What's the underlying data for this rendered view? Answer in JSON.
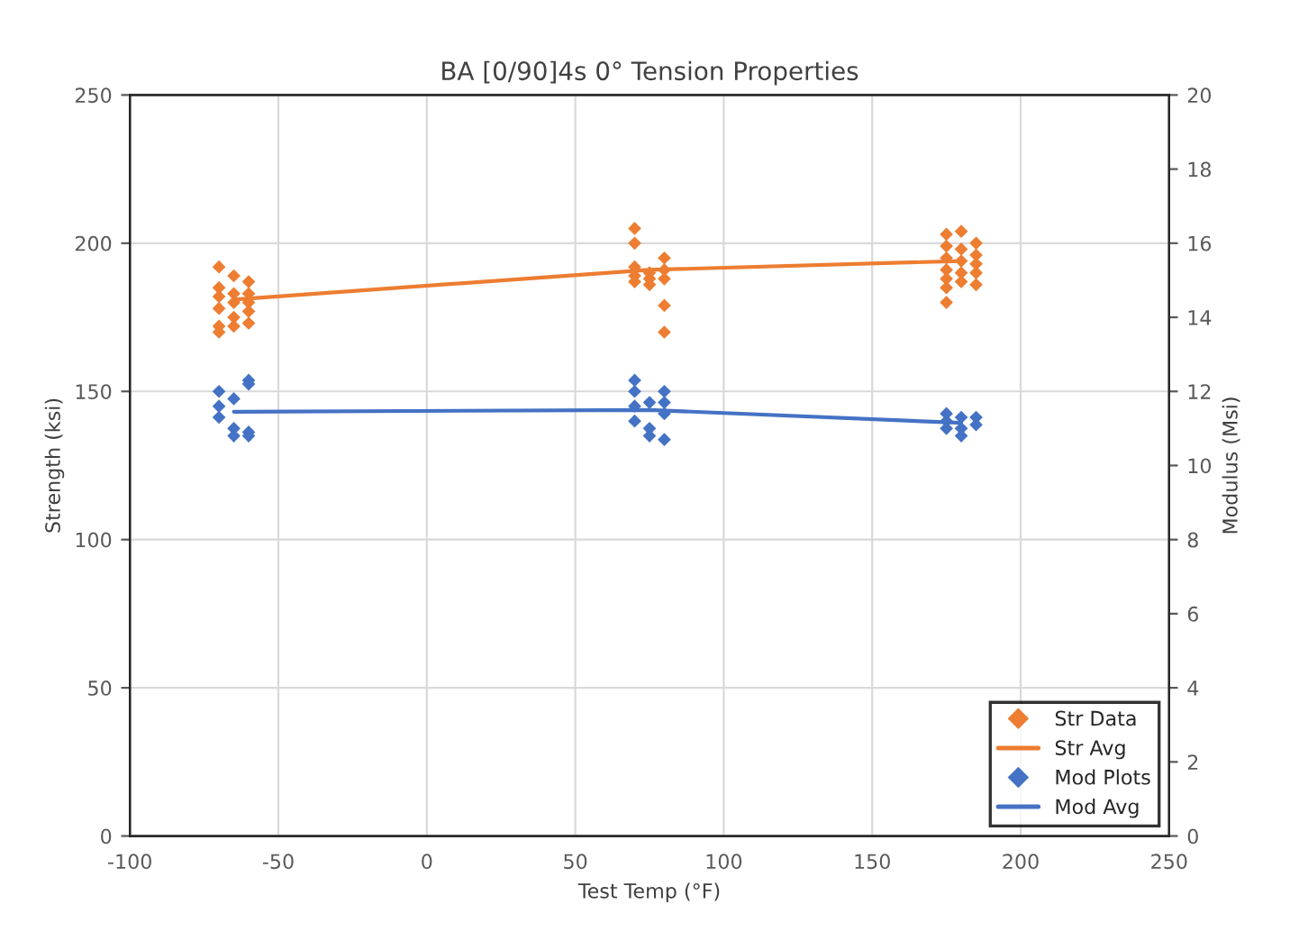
{
  "chart_data": {
    "type": "scatter",
    "title": "BA [0/90]4s 0° Tension Properties",
    "xlabel": "Test Temp (°F)",
    "ylabel": "Strength (ksi)",
    "y2label": "Modulus (Msi)",
    "xlim": [
      -100,
      250
    ],
    "xticks": [
      -100,
      -50,
      0,
      50,
      100,
      150,
      200,
      250
    ],
    "ylim": [
      0,
      250
    ],
    "yticks": [
      0,
      50,
      100,
      150,
      200,
      250
    ],
    "y2lim": [
      0,
      20
    ],
    "y2ticks": [
      0,
      2,
      4,
      6,
      8,
      10,
      12,
      14,
      16,
      18,
      20
    ],
    "grid": true,
    "legend": "bottom right",
    "marker": "diamond",
    "series": [
      {
        "name": "Str Data",
        "color": "#ed7d31",
        "x": [
          -70,
          -70,
          -70,
          -70,
          -70,
          -70,
          -65,
          -65,
          -65,
          -65,
          -65,
          -60,
          -60,
          -60,
          -60,
          -60,
          70,
          70,
          70,
          70,
          70,
          75,
          75,
          75,
          80,
          80,
          80,
          80,
          80,
          175,
          175,
          175,
          175,
          175,
          175,
          175,
          180,
          180,
          180,
          180,
          180,
          185,
          185,
          185,
          185,
          185
        ],
        "values": [
          192,
          185,
          182,
          178,
          172,
          170,
          189,
          183,
          180,
          175,
          172,
          187,
          183,
          180,
          177,
          173,
          205,
          200,
          192,
          189,
          187,
          190,
          188,
          186,
          195,
          191,
          188,
          179,
          170,
          203,
          199,
          195,
          191,
          188,
          185,
          180,
          204,
          198,
          194,
          190,
          187,
          200,
          196,
          193,
          190,
          186
        ]
      },
      {
        "name": "Str Avg",
        "type": "line",
        "color": "#ed7d31",
        "marker": "none",
        "x": [
          -65,
          75,
          180
        ],
        "values": [
          181,
          191,
          194
        ]
      },
      {
        "name": "Mod Plots",
        "axis": "y2",
        "color": "#4472c4",
        "x": [
          -70,
          -70,
          -70,
          -65,
          -65,
          -65,
          -60,
          -60,
          -60,
          -60,
          70,
          70,
          70,
          70,
          75,
          75,
          75,
          80,
          80,
          80,
          80,
          175,
          175,
          175,
          180,
          180,
          180,
          185,
          185
        ],
        "values": [
          12.0,
          11.6,
          11.3,
          11.8,
          11.0,
          10.8,
          12.3,
          12.2,
          10.9,
          10.8,
          12.3,
          12.0,
          11.6,
          11.2,
          11.7,
          11.0,
          10.8,
          12.0,
          11.7,
          11.4,
          10.7,
          11.4,
          11.2,
          11.0,
          11.3,
          11.0,
          10.8,
          11.3,
          11.1
        ]
      },
      {
        "name": "Mod Avg",
        "type": "line",
        "axis": "y2",
        "color": "#4472c4",
        "marker": "none",
        "x": [
          -65,
          75,
          180
        ],
        "values": [
          11.45,
          11.5,
          11.15
        ]
      }
    ]
  }
}
